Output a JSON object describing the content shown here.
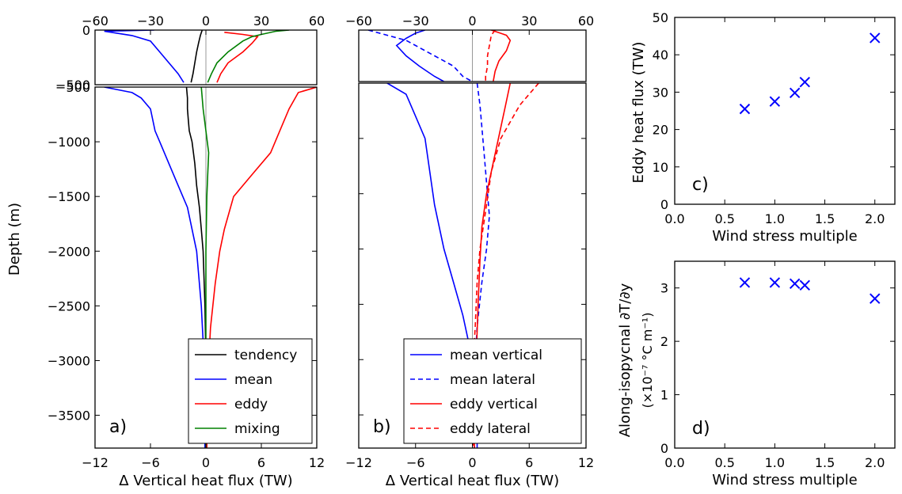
{
  "colors": {
    "tendency": "#000000",
    "mean": "#0000ff",
    "eddy": "#ff0000",
    "mixing": "#008000",
    "zero_line": "#999999"
  },
  "chart_data": [
    {
      "id": "a",
      "type": "line",
      "panel_label": "a)",
      "xlabel": "Δ Vertical heat flux (TW)",
      "ylabel": "Depth (m)",
      "upper": {
        "xlim": [
          -60,
          60
        ],
        "ylim": [
          -500,
          0
        ],
        "xticks": [
          -60,
          -30,
          0,
          30,
          60
        ],
        "yticks": [
          0,
          -500
        ]
      },
      "lower": {
        "xlim": [
          -12,
          12
        ],
        "ylim": [
          -3800,
          -500
        ],
        "xticks": [
          -12,
          -6,
          0,
          6,
          12
        ],
        "xtick_labels": [
          "−12",
          "−6",
          "0",
          "6",
          "12"
        ],
        "yticks": [
          -500,
          -1000,
          -1500,
          -2000,
          -2500,
          -3000,
          -3500
        ]
      },
      "legend": {
        "position": "lower-right",
        "entries": [
          "tendency",
          "mean",
          "eddy",
          "mixing"
        ]
      },
      "series": [
        {
          "name": "tendency",
          "color": "#000000",
          "dash": "solid",
          "upper": [
            [
              -2,
              0
            ],
            [
              -3,
              -50
            ],
            [
              -4,
              -120
            ],
            [
              -5,
              -200
            ],
            [
              -6,
              -300
            ],
            [
              -7,
              -400
            ],
            [
              -8,
              -480
            ]
          ],
          "lower": [
            [
              -2.1,
              -500
            ],
            [
              -2.0,
              -600
            ],
            [
              -2.0,
              -700
            ],
            [
              -1.9,
              -800
            ],
            [
              -1.8,
              -900
            ],
            [
              -1.5,
              -1000
            ],
            [
              -1.2,
              -1200
            ],
            [
              -1.0,
              -1400
            ],
            [
              -0.7,
              -1600
            ],
            [
              -0.5,
              -1800
            ],
            [
              -0.3,
              -2000
            ],
            [
              -0.1,
              -2500
            ],
            [
              0.0,
              -3000
            ],
            [
              0.0,
              -3800
            ]
          ]
        },
        {
          "name": "mean",
          "color": "#0000ff",
          "dash": "solid",
          "upper": [
            [
              -28,
              0
            ],
            [
              -55,
              -10
            ],
            [
              -40,
              -50
            ],
            [
              -30,
              -100
            ],
            [
              -25,
              -200
            ],
            [
              -20,
              -300
            ],
            [
              -15,
              -400
            ],
            [
              -12,
              -480
            ]
          ],
          "lower": [
            [
              -11,
              -500
            ],
            [
              -8,
              -550
            ],
            [
              -7,
              -600
            ],
            [
              -6,
              -700
            ],
            [
              -5.5,
              -900
            ],
            [
              -5,
              -1000
            ],
            [
              -4,
              -1200
            ],
            [
              -3,
              -1400
            ],
            [
              -2,
              -1600
            ],
            [
              -1.5,
              -1800
            ],
            [
              -1,
              -2000
            ],
            [
              -0.5,
              -2500
            ],
            [
              -0.2,
              -3000
            ],
            [
              -0.1,
              -3800
            ]
          ]
        },
        {
          "name": "eddy",
          "color": "#ff0000",
          "dash": "solid",
          "upper": [
            [
              10,
              -20
            ],
            [
              20,
              -40
            ],
            [
              28,
              -60
            ],
            [
              25,
              -120
            ],
            [
              20,
              -200
            ],
            [
              12,
              -300
            ],
            [
              8,
              -400
            ],
            [
              6,
              -480
            ]
          ],
          "lower": [
            [
              12,
              -500
            ],
            [
              10,
              -550
            ],
            [
              9,
              -700
            ],
            [
              8,
              -900
            ],
            [
              7,
              -1100
            ],
            [
              5,
              -1300
            ],
            [
              3,
              -1500
            ],
            [
              2,
              -1800
            ],
            [
              1.5,
              -2000
            ],
            [
              1,
              -2300
            ],
            [
              0.5,
              -2700
            ],
            [
              0.2,
              -3200
            ],
            [
              0.1,
              -3800
            ]
          ]
        },
        {
          "name": "mixing",
          "color": "#008000",
          "dash": "solid",
          "upper": [
            [
              45,
              0
            ],
            [
              38,
              -10
            ],
            [
              30,
              -40
            ],
            [
              25,
              -60
            ],
            [
              20,
              -100
            ],
            [
              12,
              -200
            ],
            [
              6,
              -300
            ],
            [
              3,
              -400
            ],
            [
              1,
              -480
            ]
          ],
          "lower": [
            [
              -0.5,
              -500
            ],
            [
              -0.3,
              -700
            ],
            [
              0,
              -900
            ],
            [
              0.3,
              -1100
            ],
            [
              0.2,
              -1300
            ],
            [
              0.1,
              -1500
            ],
            [
              0,
              -2000
            ],
            [
              0,
              -3800
            ]
          ]
        }
      ]
    },
    {
      "id": "b",
      "type": "line",
      "panel_label": "b)",
      "xlabel": "Δ Vertical heat flux (TW)",
      "upper": {
        "xlim": [
          -60,
          60
        ],
        "ylim": [
          -500,
          0
        ],
        "xticks": [
          -60,
          -30,
          0,
          30,
          60
        ]
      },
      "lower": {
        "xlim": [
          -12,
          12
        ],
        "ylim": [
          -3800,
          -500
        ],
        "xticks": [
          -12,
          -6,
          0,
          6,
          12
        ],
        "xtick_labels": [
          "−12",
          "−6",
          "0",
          "6",
          "12"
        ]
      },
      "legend": {
        "position": "lower-right",
        "entries": [
          "mean vertical",
          "mean lateral",
          "eddy vertical",
          "eddy lateral"
        ]
      },
      "series": [
        {
          "name": "mean vertical",
          "color": "#0000ff",
          "dash": "solid",
          "upper": [
            [
              -25,
              0
            ],
            [
              -30,
              -30
            ],
            [
              -35,
              -80
            ],
            [
              -40,
              -150
            ],
            [
              -35,
              -250
            ],
            [
              -28,
              -350
            ],
            [
              -20,
              -450
            ],
            [
              -15,
              -500
            ]
          ],
          "lower": [
            [
              -9,
              -500
            ],
            [
              -7,
              -600
            ],
            [
              -6,
              -800
            ],
            [
              -5,
              -1000
            ],
            [
              -4.5,
              -1300
            ],
            [
              -4,
              -1600
            ],
            [
              -3,
              -2000
            ],
            [
              -2,
              -2300
            ],
            [
              -1,
              -2600
            ],
            [
              0,
              -3000
            ],
            [
              0.5,
              -3500
            ],
            [
              0.5,
              -3800
            ]
          ]
        },
        {
          "name": "mean lateral",
          "color": "#0000ff",
          "dash": "dashed",
          "upper": [
            [
              -55,
              0
            ],
            [
              -45,
              -50
            ],
            [
              -35,
              -100
            ],
            [
              -20,
              -250
            ],
            [
              -10,
              -350
            ],
            [
              -5,
              -450
            ],
            [
              0,
              -500
            ]
          ],
          "lower": [
            [
              0.5,
              -500
            ],
            [
              0.8,
              -700
            ],
            [
              1,
              -900
            ],
            [
              1.2,
              -1100
            ],
            [
              1.5,
              -1400
            ],
            [
              1.8,
              -1700
            ],
            [
              1.5,
              -2000
            ],
            [
              1,
              -2300
            ],
            [
              0.5,
              -2700
            ],
            [
              0.3,
              -3000
            ],
            [
              0.2,
              -3800
            ]
          ]
        },
        {
          "name": "eddy vertical",
          "color": "#ff0000",
          "dash": "solid",
          "upper": [
            [
              10,
              0
            ],
            [
              18,
              -50
            ],
            [
              20,
              -100
            ],
            [
              18,
              -200
            ],
            [
              14,
              -300
            ],
            [
              12,
              -400
            ],
            [
              11,
              -500
            ]
          ],
          "lower": [
            [
              4,
              -500
            ],
            [
              3.5,
              -700
            ],
            [
              3,
              -900
            ],
            [
              2.5,
              -1100
            ],
            [
              2,
              -1300
            ],
            [
              1.5,
              -1500
            ],
            [
              1,
              -1800
            ],
            [
              0.8,
              -2100
            ],
            [
              0.6,
              -2500
            ],
            [
              0.4,
              -3000
            ],
            [
              0.2,
              -3800
            ]
          ]
        },
        {
          "name": "eddy lateral",
          "color": "#ff0000",
          "dash": "dashed",
          "upper": [
            [
              12,
              0
            ],
            [
              10,
              -50
            ],
            [
              9,
              -150
            ],
            [
              8,
              -250
            ],
            [
              8,
              -350
            ],
            [
              7,
              -450
            ],
            [
              7,
              -500
            ]
          ],
          "lower": [
            [
              7,
              -500
            ],
            [
              5,
              -700
            ],
            [
              3,
              -1000
            ],
            [
              2,
              -1300
            ],
            [
              1.5,
              -1600
            ],
            [
              0.8,
              -2000
            ],
            [
              0.5,
              -2300
            ],
            [
              0.3,
              -2700
            ],
            [
              0.1,
              -3000
            ],
            [
              0.1,
              -3800
            ]
          ]
        }
      ]
    },
    {
      "id": "c",
      "type": "scatter",
      "panel_label": "c)",
      "xlabel": "Wind stress multiple",
      "ylabel": "Eddy heat flux (TW)",
      "xlim": [
        0.0,
        2.2
      ],
      "ylim": [
        0,
        50
      ],
      "xticks": [
        0.0,
        0.5,
        1.0,
        1.5,
        2.0
      ],
      "xtick_labels": [
        "0.0",
        "0.5",
        "1.0",
        "1.5",
        "2.0"
      ],
      "yticks": [
        0,
        10,
        20,
        30,
        40,
        50
      ],
      "x": [
        0.7,
        1.0,
        1.2,
        1.3,
        2.0
      ],
      "y": [
        25.5,
        27.5,
        29.8,
        32.7,
        44.5
      ]
    },
    {
      "id": "d",
      "type": "scatter",
      "panel_label": "d)",
      "xlabel": "Wind stress multiple",
      "ylabel": "Along-isopycnal ∂T/∂y",
      "ylabel_units": "(×10⁻⁷ °C m⁻¹)",
      "xlim": [
        0.0,
        2.2
      ],
      "ylim": [
        0,
        3.5
      ],
      "xticks": [
        0.0,
        0.5,
        1.0,
        1.5,
        2.0
      ],
      "xtick_labels": [
        "0.0",
        "0.5",
        "1.0",
        "1.5",
        "2.0"
      ],
      "yticks": [
        0,
        1,
        2,
        3
      ],
      "x": [
        0.7,
        1.0,
        1.2,
        1.3,
        2.0
      ],
      "y": [
        3.1,
        3.1,
        3.08,
        3.05,
        2.8
      ]
    }
  ]
}
